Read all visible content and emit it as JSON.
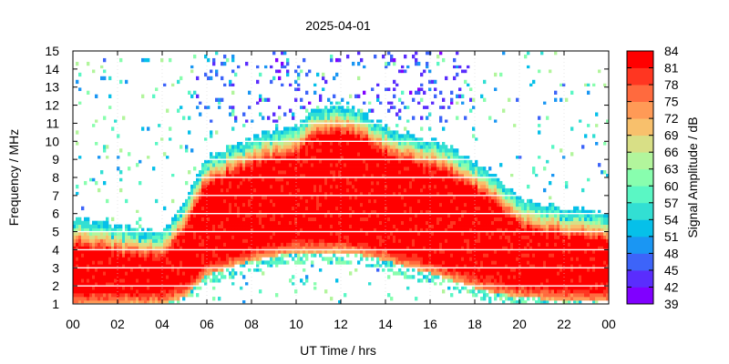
{
  "chart_data": {
    "type": "heatmap",
    "title": "2025-04-01",
    "xlabel": "UT Time / hrs",
    "ylabel": "Frequency / MHz",
    "colorbar_label": "Signal Amplitude / dB",
    "xlim": [
      0,
      24
    ],
    "ylim": [
      1,
      15
    ],
    "x_ticks": [
      "00",
      "02",
      "04",
      "06",
      "08",
      "10",
      "12",
      "14",
      "16",
      "18",
      "20",
      "22",
      "00"
    ],
    "y_ticks": [
      "1",
      "2",
      "3",
      "4",
      "5",
      "6",
      "7",
      "8",
      "9",
      "10",
      "11",
      "12",
      "13",
      "14",
      "15"
    ],
    "colorbar_ticks": [
      "39",
      "42",
      "45",
      "48",
      "51",
      "54",
      "57",
      "60",
      "63",
      "66",
      "69",
      "72",
      "75",
      "78",
      "81",
      "84"
    ],
    "colorbar_range": [
      39,
      84
    ],
    "colors": [
      "#8000ff",
      "#5a2dfd",
      "#3d64f9",
      "#1a96f3",
      "#06c0e9",
      "#32dfd3",
      "#5af7c4",
      "#88feae",
      "#b2f59c",
      "#d8df86",
      "#f8c06c",
      "#ff9a56",
      "#ff6a3e",
      "#ff3621",
      "#ff0000"
    ],
    "profile": {
      "hours": [
        0,
        2,
        4,
        5,
        6,
        8,
        10,
        11,
        12,
        13,
        14,
        16,
        17,
        18,
        19,
        20,
        22,
        24
      ],
      "upper_edge_mhz": [
        5.2,
        4.7,
        4.4,
        6.0,
        8.6,
        9.6,
        10.3,
        11.3,
        11.5,
        11.0,
        10.2,
        9.5,
        9.1,
        8.3,
        7.4,
        6.2,
        5.7,
        5.5
      ],
      "lower_edge_mhz": [
        1.0,
        1.0,
        1.0,
        1.4,
        2.6,
        3.4,
        3.9,
        3.9,
        3.9,
        3.7,
        3.4,
        2.7,
        2.3,
        1.9,
        1.6,
        1.4,
        1.2,
        1.1
      ]
    },
    "noise_band_hours": [
      5.5,
      18.0
    ],
    "noise_band_mhz": [
      11.0,
      15.0
    ]
  }
}
